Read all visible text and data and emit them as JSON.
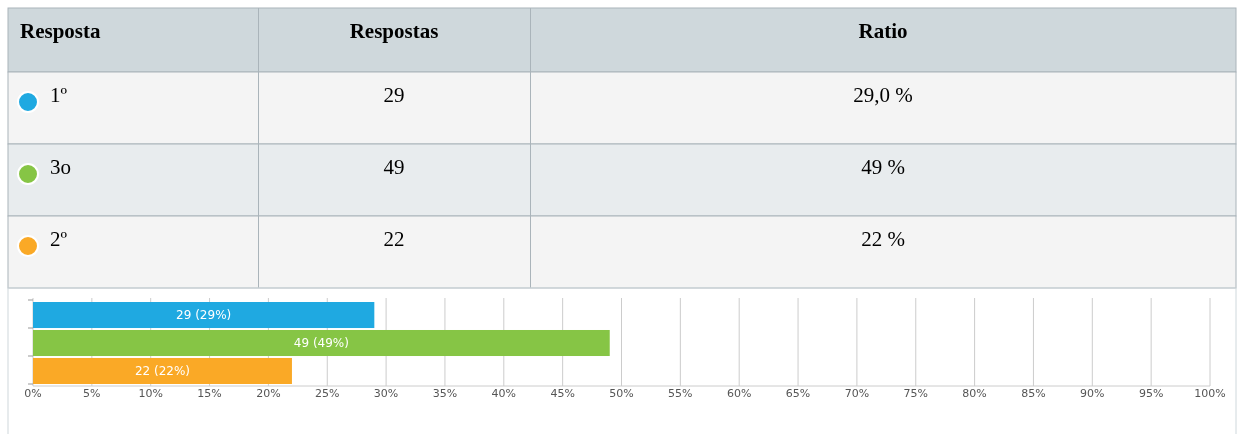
{
  "chart_data": [
    {
      "type": "other",
      "annotations": [
        "Resposta",
        "Respostas",
        "Ratio",
        "1º",
        "29",
        "29,0 %",
        "3o",
        "49",
        "49 %",
        "2º",
        "22",
        "22 %"
      ]
    },
    {
      "type": "bar",
      "orientation": "horizontal",
      "categories": [
        null,
        null,
        null
      ],
      "values": [
        29,
        49,
        22
      ],
      "colors": [
        "#1fa9e1",
        "#86c545",
        "#faa926"
      ],
      "value_labels": [
        "29 (29%)",
        "49 (49%)",
        "22 (22%)"
      ],
      "xlim": [
        0,
        100
      ],
      "xticks": [
        {
          "value": 0,
          "label": "0%"
        },
        {
          "value": 5,
          "label": "5%"
        },
        {
          "value": 10,
          "label": "10%"
        },
        {
          "value": 15,
          "label": "15%"
        },
        {
          "value": 20,
          "label": "20%"
        },
        {
          "value": 25,
          "label": "25%"
        },
        {
          "value": 30,
          "label": "30%"
        },
        {
          "value": 35,
          "label": "35%"
        },
        {
          "value": 40,
          "label": "40%"
        },
        {
          "value": 45,
          "label": "45%"
        },
        {
          "value": 50,
          "label": "50%"
        },
        {
          "value": 55,
          "label": "55%"
        },
        {
          "value": 60,
          "label": "60%"
        },
        {
          "value": 65,
          "label": "65%"
        },
        {
          "value": 70,
          "label": "70%"
        },
        {
          "value": 75,
          "label": "75%"
        },
        {
          "value": 80,
          "label": "80%"
        },
        {
          "value": 85,
          "label": "85%"
        },
        {
          "value": 90,
          "label": "90%"
        },
        {
          "value": 95,
          "label": "95%"
        },
        {
          "value": 100,
          "label": "100%"
        }
      ],
      "grid": "x",
      "tick_labels": "x"
    }
  ]
}
